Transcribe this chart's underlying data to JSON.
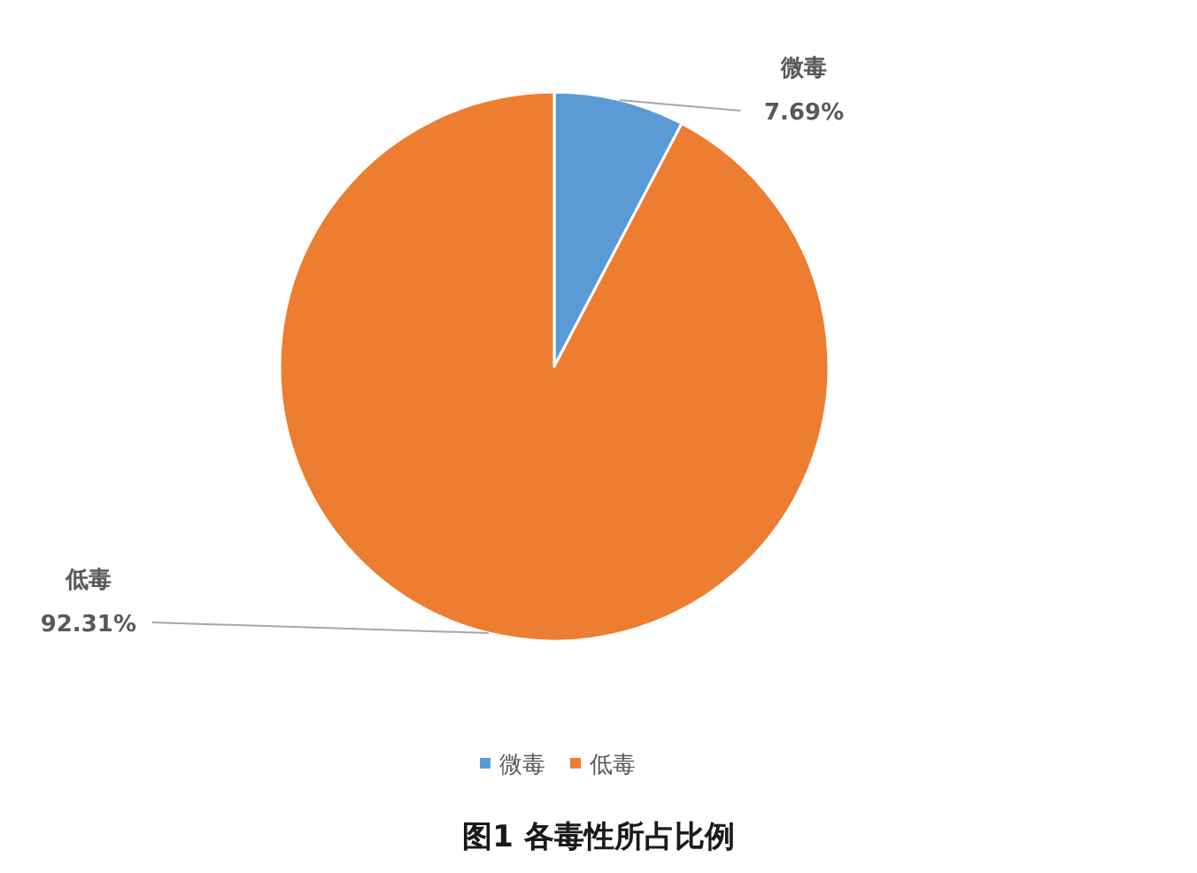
{
  "chart_data": {
    "type": "pie",
    "title": "图1 各毒性所占比例",
    "categories": [
      "微毒",
      "低毒"
    ],
    "values": [
      7.69,
      92.31
    ],
    "value_labels": [
      "7.69%",
      "92.31%"
    ],
    "colors": [
      "#5b9bd5",
      "#ed7d31"
    ],
    "legend": "bottom"
  }
}
